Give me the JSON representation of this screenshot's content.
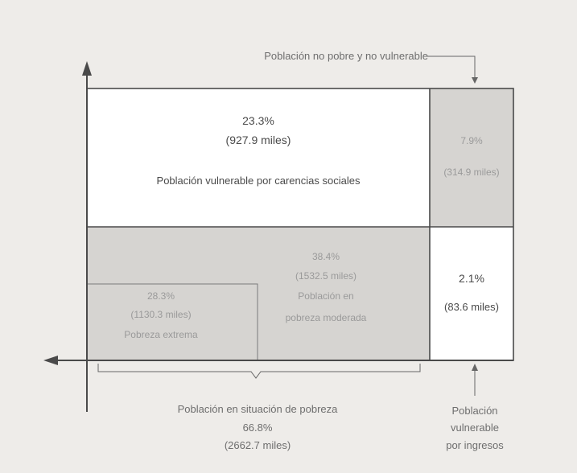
{
  "header": {
    "non_poor_label": "Población no pobre y no vulnerable"
  },
  "regions": {
    "vulnerable_social": {
      "percent": "23.3%",
      "amount": "(927.9 miles)",
      "label": "Población vulnerable por carencias sociales"
    },
    "non_poor": {
      "percent": "7.9%",
      "amount": "(314.9 miles)"
    },
    "moderate_poverty": {
      "percent": "38.4%",
      "amount": "(1532.5 miles)",
      "label_line1": "Población en",
      "label_line2": "pobreza moderada"
    },
    "extreme_poverty": {
      "percent": "28.3%",
      "amount": "(1130.3 miles)",
      "label": "Pobreza extrema"
    },
    "vulnerable_income": {
      "percent": "2.1%",
      "amount": "(83.6 miles)"
    }
  },
  "footer": {
    "poverty_label": "Población en situación de pobreza",
    "poverty_percent": "66.8%",
    "poverty_amount": "(2662.7 miles)",
    "income_line1": "Población",
    "income_line2": "vulnerable",
    "income_line3": "por ingresos"
  },
  "colors": {
    "background": "#eeece9",
    "white_region": "#ffffff",
    "shaded_region": "#d6d4d1",
    "border": "#4a4a4a"
  }
}
